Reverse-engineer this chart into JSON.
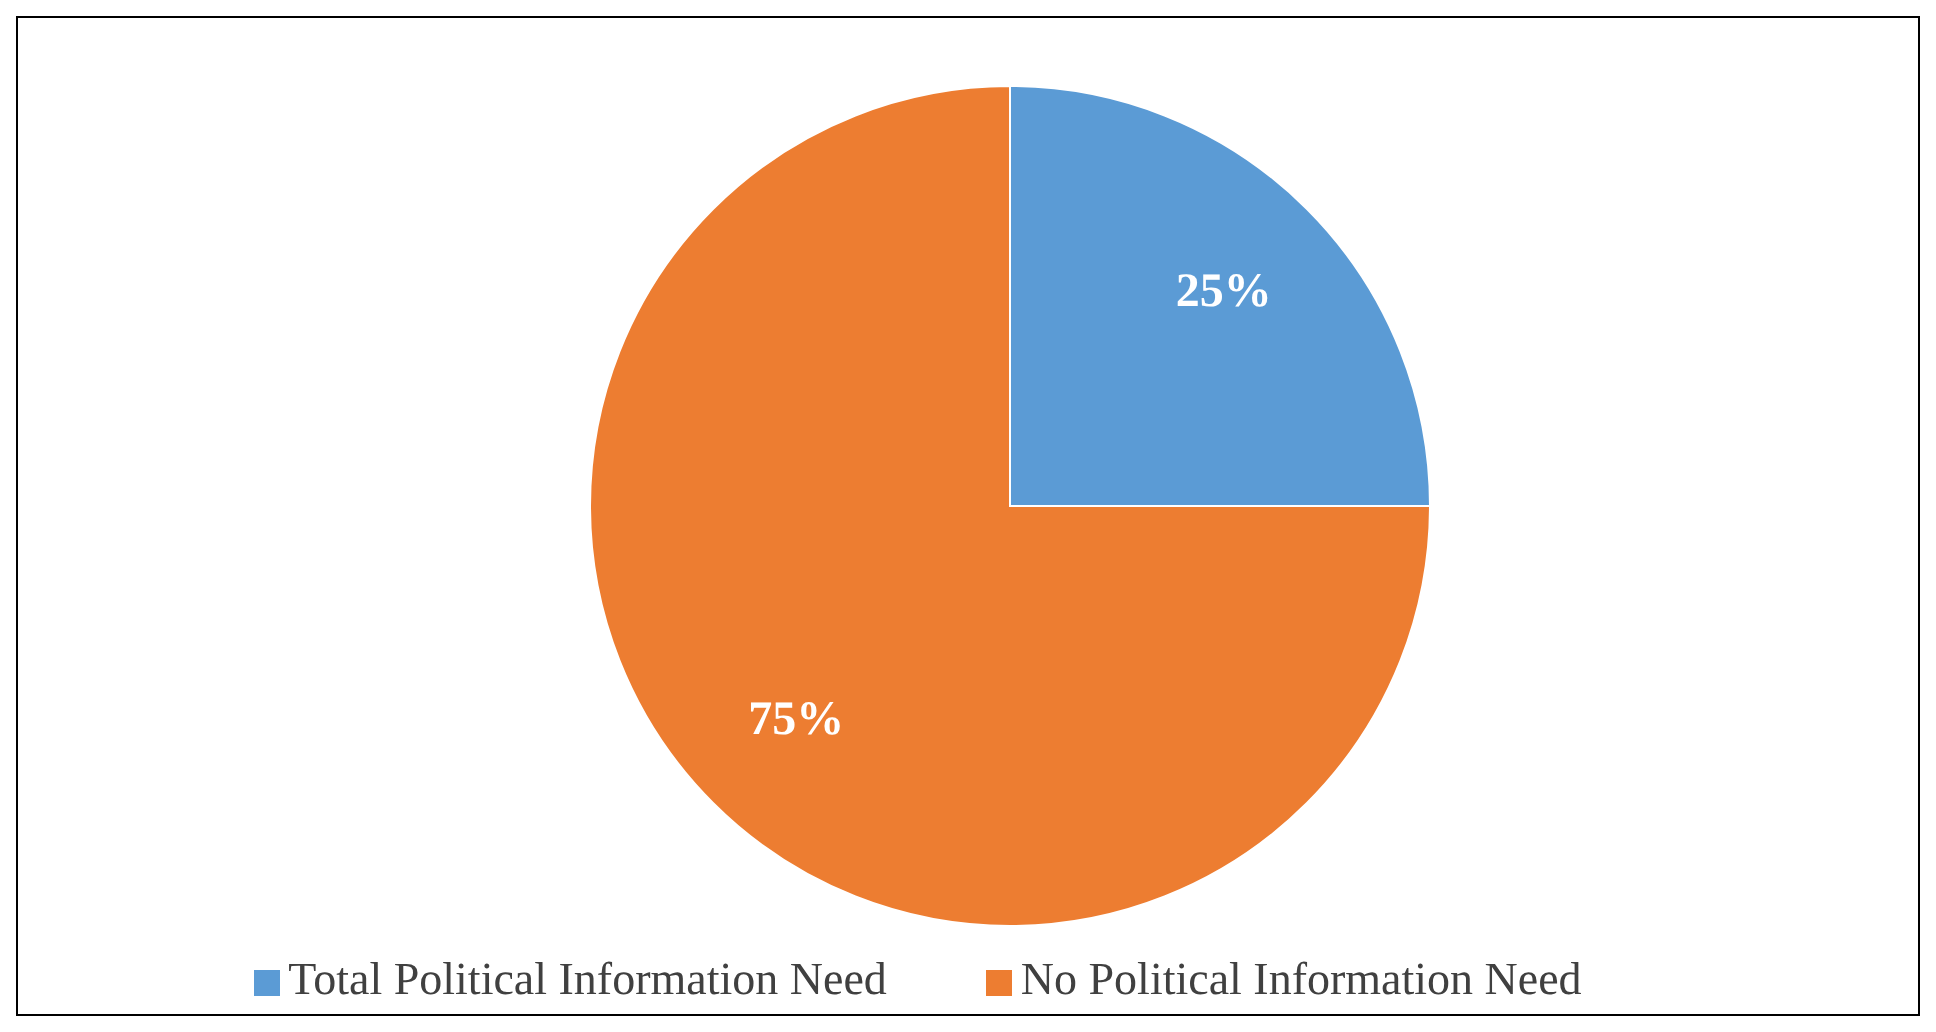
{
  "chart_data": {
    "type": "pie",
    "categories": [
      "Total Political Information Need",
      "No Political Information Need"
    ],
    "values": [
      25,
      75
    ],
    "colors": [
      "#5b9bd5",
      "#ed7d31"
    ],
    "value_labels": [
      "25%",
      "75%"
    ],
    "legend": "bottom"
  }
}
